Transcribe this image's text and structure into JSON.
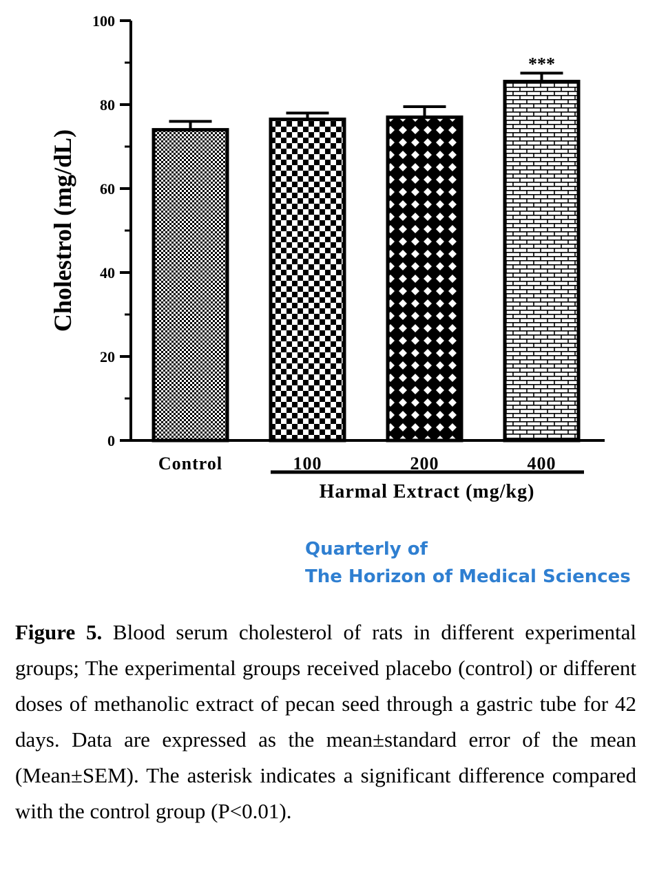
{
  "chart_data": {
    "type": "bar",
    "categories": [
      "Control",
      "100",
      "200",
      "400"
    ],
    "values": [
      74,
      76.5,
      77,
      85.5
    ],
    "errors": [
      2,
      1.5,
      2.5,
      2
    ],
    "significance": [
      "",
      "",
      "",
      "***"
    ],
    "ylabel": "Cholestrol (mg/dL)",
    "xlabel": "Harmal Extract (mg/kg)",
    "ylim": [
      0,
      100
    ],
    "yticks": [
      0,
      20,
      40,
      60,
      80,
      100
    ],
    "legend": "none",
    "grid": false,
    "patterns": [
      "fine-check",
      "checker",
      "diamond-lattice",
      "brick"
    ]
  },
  "watermark": {
    "line1": "Quarterly of",
    "line2": "The Horizon of Medical Sciences",
    "color": "#2f7fd1"
  },
  "caption": {
    "label": "Figure 5.",
    "text": "Blood serum cholesterol of rats in different experimental groups; The experimental groups received placebo (control) or different doses of methanolic extract of pecan seed through a gastric tube for 42 days. Data are expressed as the mean±standard error of the mean (Mean±SEM). The asterisk indicates a significant difference compared with the control group (P<0.01)."
  }
}
